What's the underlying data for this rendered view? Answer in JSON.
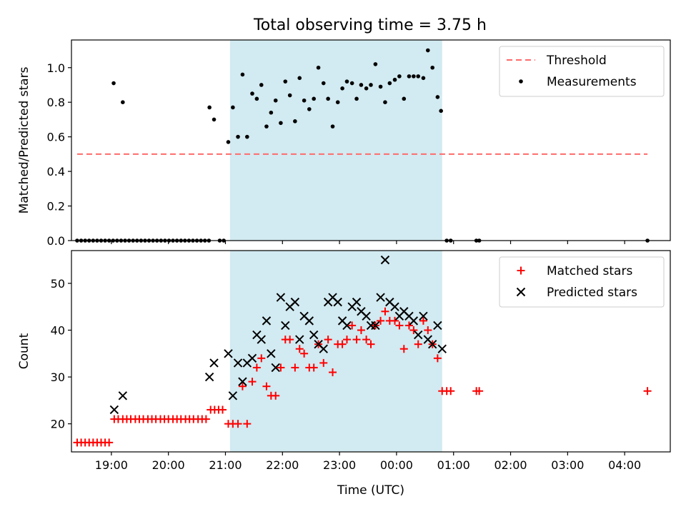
{
  "figure_title": "Total observing time = 3.75 h",
  "colors": {
    "span": "#add8e6",
    "threshold": "#ff6b6b",
    "measure": "#000000",
    "matched": "#ff0000",
    "predicted": "#000000"
  },
  "chart_data": [
    {
      "type": "scatter",
      "ylabel": "Matched/Predicted stars",
      "xlim": [
        -0.7,
        9.8
      ],
      "ylim": [
        0,
        1.16
      ],
      "yticks": [
        0.0,
        0.2,
        0.4,
        0.6,
        0.8,
        1.0
      ],
      "ytick_labels": [
        "0.0",
        "0.2",
        "0.4",
        "0.6",
        "0.8",
        "1.0"
      ],
      "shaded_span": [
        2.08,
        5.8
      ],
      "legend": {
        "position": "top-right",
        "entries": [
          "Threshold",
          "Measurements"
        ]
      },
      "threshold": {
        "name": "Threshold",
        "value": 0.5,
        "x_range": [
          -0.6,
          9.4
        ]
      },
      "series": [
        {
          "name": "Measurements",
          "x": [
            -0.6,
            -0.53,
            -0.46,
            -0.39,
            -0.32,
            -0.25,
            -0.18,
            -0.11,
            -0.04,
            0.03,
            0.1,
            0.17,
            0.24,
            0.31,
            0.38,
            0.45,
            0.52,
            0.59,
            0.66,
            0.73,
            0.8,
            0.87,
            0.94,
            1.01,
            1.08,
            1.15,
            1.22,
            1.29,
            1.36,
            1.43,
            1.5,
            1.57,
            1.64,
            1.71,
            1.9,
            1.97,
            9.4,
            0.04,
            0.2,
            1.72,
            1.8,
            2.05,
            2.13,
            2.22,
            2.3,
            2.38,
            2.47,
            2.55,
            2.63,
            2.72,
            2.8,
            2.88,
            2.97,
            3.05,
            3.13,
            3.22,
            3.3,
            3.38,
            3.47,
            3.55,
            3.63,
            3.72,
            3.8,
            3.88,
            3.97,
            4.05,
            4.13,
            4.22,
            4.3,
            4.38,
            4.47,
            4.55,
            4.63,
            4.72,
            4.8,
            4.88,
            4.97,
            5.05,
            5.13,
            5.22,
            5.3,
            5.38,
            5.47,
            5.55,
            5.63,
            5.72,
            5.78,
            5.88,
            5.95,
            6.4,
            6.45
          ],
          "y": [
            0,
            0,
            0,
            0,
            0,
            0,
            0,
            0,
            0,
            0,
            0,
            0,
            0,
            0,
            0,
            0,
            0,
            0,
            0,
            0,
            0,
            0,
            0,
            0,
            0,
            0,
            0,
            0,
            0,
            0,
            0,
            0,
            0,
            0,
            0,
            0,
            0,
            0.91,
            0.8,
            0.77,
            0.7,
            0.57,
            0.77,
            0.6,
            0.96,
            0.6,
            0.85,
            0.82,
            0.9,
            0.66,
            0.74,
            0.81,
            0.68,
            0.92,
            0.84,
            0.69,
            0.94,
            0.81,
            0.76,
            0.82,
            1.0,
            0.91,
            0.82,
            0.66,
            0.8,
            0.88,
            0.92,
            0.91,
            0.82,
            0.9,
            0.88,
            0.9,
            1.02,
            0.89,
            0.8,
            0.91,
            0.93,
            0.95,
            0.82,
            0.95,
            0.95,
            0.95,
            0.94,
            1.1,
            1.0,
            0.83,
            0.75,
            0,
            0,
            0,
            0
          ]
        }
      ]
    },
    {
      "type": "scatter",
      "ylabel": "Count",
      "xlabel": "Time (UTC)",
      "xlim": [
        -0.7,
        9.8
      ],
      "ylim": [
        14,
        57
      ],
      "xticks": [
        0,
        1,
        2,
        3,
        4,
        5,
        6,
        7,
        8,
        9
      ],
      "xtick_labels": [
        "19:00",
        "20:00",
        "21:00",
        "22:00",
        "23:00",
        "00:00",
        "01:00",
        "02:00",
        "03:00",
        "04:00"
      ],
      "yticks": [
        20,
        30,
        40,
        50
      ],
      "ytick_labels": [
        "20",
        "30",
        "40",
        "50"
      ],
      "shaded_span": [
        2.08,
        5.8
      ],
      "legend": {
        "position": "top-right",
        "entries": [
          "Matched stars",
          "Predicted stars"
        ]
      },
      "series": [
        {
          "name": "Matched stars",
          "marker": "plus",
          "x": [
            -0.6,
            -0.53,
            -0.46,
            -0.39,
            -0.32,
            -0.25,
            -0.18,
            -0.11,
            -0.04,
            0.05,
            0.12,
            0.2,
            0.27,
            0.34,
            0.42,
            0.49,
            0.56,
            0.64,
            0.71,
            0.78,
            0.86,
            0.93,
            1.0,
            1.08,
            1.15,
            1.22,
            1.3,
            1.37,
            1.44,
            1.52,
            1.59,
            1.66,
            1.74,
            1.81,
            1.88,
            1.95,
            2.05,
            2.13,
            2.22,
            2.3,
            2.38,
            2.47,
            2.55,
            2.63,
            2.72,
            2.8,
            2.88,
            2.97,
            3.05,
            3.13,
            3.22,
            3.3,
            3.38,
            3.47,
            3.55,
            3.63,
            3.72,
            3.8,
            3.88,
            3.97,
            4.05,
            4.13,
            4.22,
            4.3,
            4.38,
            4.47,
            4.55,
            4.63,
            4.72,
            4.8,
            4.88,
            4.97,
            5.05,
            5.13,
            5.22,
            5.3,
            5.38,
            5.47,
            5.55,
            5.63,
            5.72,
            5.8,
            5.88,
            5.95,
            6.4,
            6.45,
            9.4
          ],
          "y": [
            16,
            16,
            16,
            16,
            16,
            16,
            16,
            16,
            16,
            21,
            21,
            21,
            21,
            21,
            21,
            21,
            21,
            21,
            21,
            21,
            21,
            21,
            21,
            21,
            21,
            21,
            21,
            21,
            21,
            21,
            21,
            21,
            23,
            23,
            23,
            23,
            20,
            20,
            20,
            28,
            20,
            29,
            32,
            34,
            28,
            26,
            26,
            32,
            38,
            38,
            32,
            36,
            35,
            32,
            32,
            37,
            33,
            38,
            31,
            37,
            37,
            38,
            41,
            38,
            40,
            38,
            37,
            41,
            42,
            44,
            42,
            42,
            41,
            36,
            41,
            40,
            37,
            42,
            40,
            37,
            34,
            27,
            27,
            27,
            27,
            27,
            27
          ]
        },
        {
          "name": "Predicted stars",
          "marker": "x",
          "x": [
            0.05,
            0.2,
            1.72,
            1.8,
            2.05,
            2.13,
            2.22,
            2.3,
            2.38,
            2.47,
            2.55,
            2.63,
            2.72,
            2.8,
            2.88,
            2.97,
            3.05,
            3.13,
            3.22,
            3.3,
            3.38,
            3.47,
            3.55,
            3.63,
            3.72,
            3.8,
            3.88,
            3.97,
            4.05,
            4.13,
            4.22,
            4.3,
            4.38,
            4.47,
            4.55,
            4.63,
            4.72,
            4.8,
            4.88,
            4.97,
            5.05,
            5.13,
            5.22,
            5.3,
            5.38,
            5.47,
            5.55,
            5.63,
            5.72,
            5.8
          ],
          "y": [
            23,
            26,
            30,
            33,
            35,
            26,
            33,
            29,
            33,
            34,
            39,
            38,
            42,
            35,
            32,
            47,
            41,
            45,
            46,
            38,
            43,
            42,
            39,
            37,
            36,
            46,
            47,
            46,
            42,
            41,
            45,
            46,
            44,
            43,
            41,
            41,
            47,
            55,
            46,
            45,
            43,
            44,
            43,
            42,
            39,
            43,
            38,
            37,
            41,
            36
          ]
        }
      ]
    }
  ]
}
